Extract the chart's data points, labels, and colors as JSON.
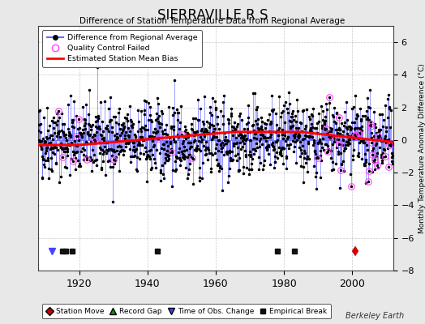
{
  "title": "SIERRAVILLE R S",
  "subtitle": "Difference of Station Temperature Data from Regional Average",
  "ylabel": "Monthly Temperature Anomaly Difference (°C)",
  "credit": "Berkeley Earth",
  "year_start": 1908,
  "year_end": 2012,
  "ylim": [
    -8,
    7
  ],
  "yticks": [
    -8,
    -6,
    -4,
    -2,
    0,
    2,
    4,
    6
  ],
  "xticks": [
    1920,
    1940,
    1960,
    1980,
    2000
  ],
  "background_color": "#e8e8e8",
  "plot_bg_color": "#ffffff",
  "line_color": "#6666ff",
  "dot_color": "#000000",
  "bias_color": "#ff0000",
  "qc_color": "#ff44ff",
  "station_move_color": "#cc0000",
  "record_gap_color": "#009900",
  "tobs_color": "#4444ff",
  "emp_break_color": "#111111",
  "seed": 42,
  "n_qc": 40,
  "station_move_years": [
    2001
  ],
  "record_gap_years": [],
  "tobs_years": [
    1912
  ],
  "emp_break_years": [
    1915,
    1916,
    1918,
    1943,
    1978,
    1983
  ],
  "marker_y": -6.8
}
